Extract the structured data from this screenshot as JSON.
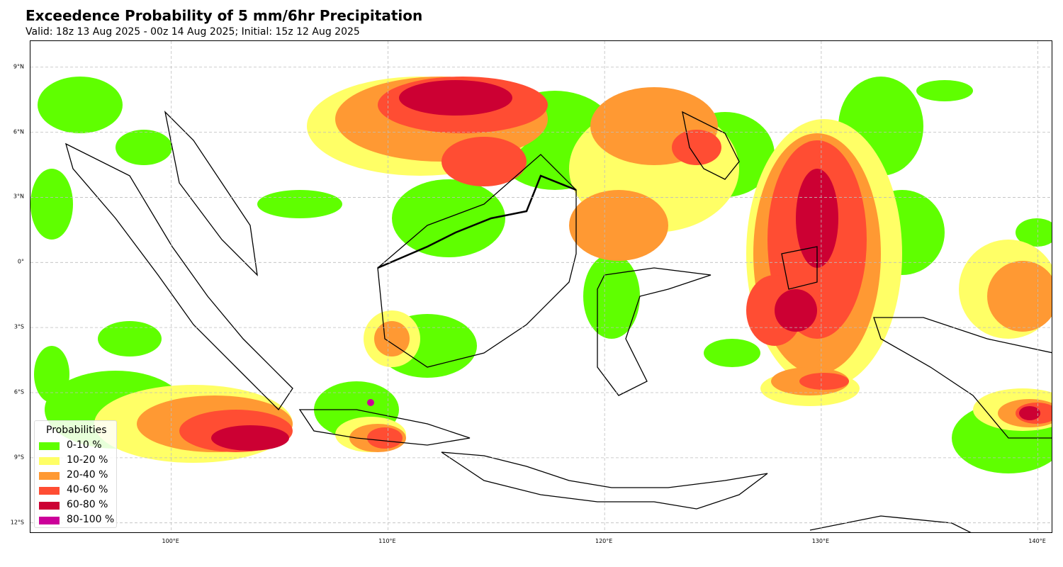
{
  "title": "Exceedence Probability of 5 mm/6hr Precipitation",
  "subtitle": "Valid: 18z 13 Aug 2025 - 00z 14 Aug 2025; Initial: 15z 12 Aug 2025",
  "map": {
    "region": "Maritime Continent / Indonesia",
    "lon_range": [
      93.5,
      140.7
    ],
    "lat_range": [
      -12.5,
      10.2
    ],
    "gridlines": true,
    "lat_ticks": [
      {
        "value": 9,
        "label": "9°N"
      },
      {
        "value": 6,
        "label": "6°N"
      },
      {
        "value": 3,
        "label": "3°N"
      },
      {
        "value": 0,
        "label": "0°"
      },
      {
        "value": -3,
        "label": "3°S"
      },
      {
        "value": -6,
        "label": "6°S"
      },
      {
        "value": -9,
        "label": "9°S"
      },
      {
        "value": -12,
        "label": "12°S"
      }
    ],
    "lon_ticks": [
      {
        "value": 100,
        "label": "100°E"
      },
      {
        "value": 110,
        "label": "110°E"
      },
      {
        "value": 120,
        "label": "120°E"
      },
      {
        "value": 130,
        "label": "130°E"
      },
      {
        "value": 140,
        "label": "140°E"
      }
    ]
  },
  "legend": {
    "title": "Probabilities",
    "placement": "bottom-left",
    "items": [
      {
        "label": "0-10 %",
        "color": "#5fff00"
      },
      {
        "label": "10-20 %",
        "color": "#ffff66"
      },
      {
        "label": "20-40 %",
        "color": "#ff9933"
      },
      {
        "label": "40-60 %",
        "color": "#ff4d33"
      },
      {
        "label": "60-80 %",
        "color": "#cc0033"
      },
      {
        "label": "80-100 %",
        "color": "#cc0099"
      }
    ]
  }
}
